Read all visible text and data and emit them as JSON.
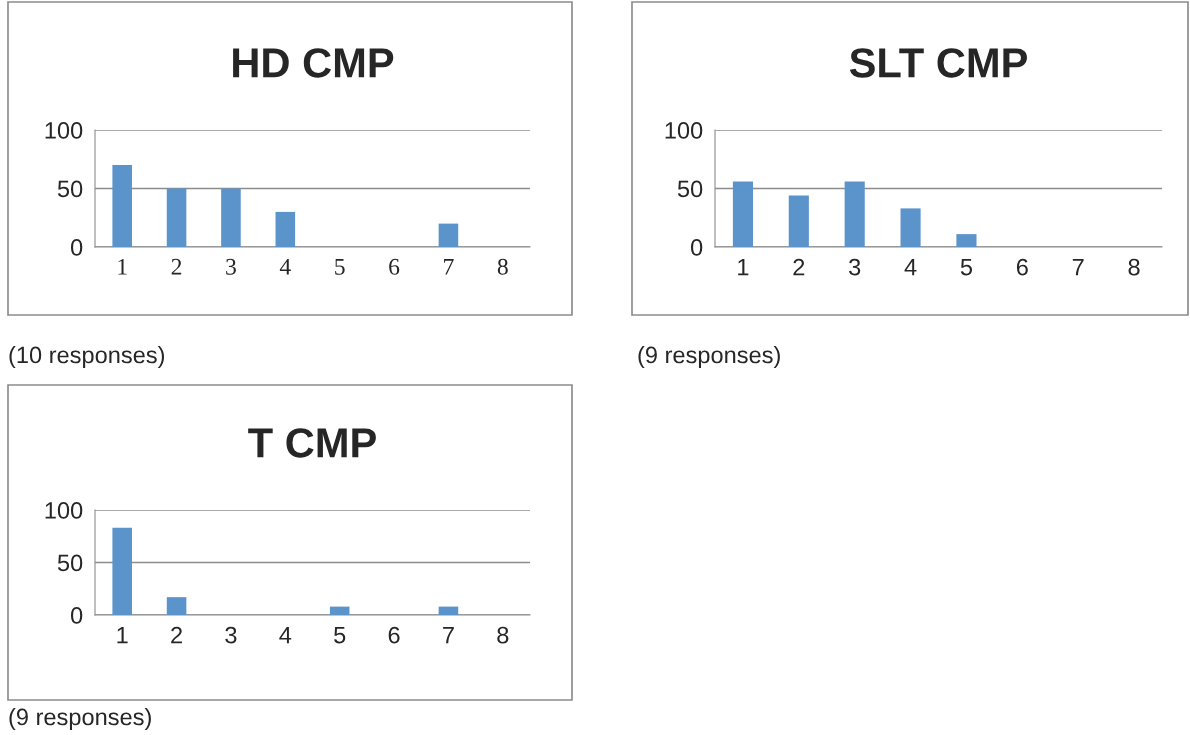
{
  "chart_data": [
    {
      "type": "bar",
      "title": "HD CMP",
      "categories": [
        "1",
        "2",
        "3",
        "4",
        "5",
        "6",
        "7",
        "8"
      ],
      "values": [
        70,
        50,
        50,
        30,
        0,
        0,
        20,
        0
      ],
      "color": "#5b93cb",
      "ylim": [
        0,
        100
      ],
      "yticks": [
        0,
        50,
        100
      ],
      "grid": "y",
      "annotations": [
        "(10 responses)"
      ]
    },
    {
      "type": "bar",
      "title": "SLT CMP",
      "categories": [
        "1",
        "2",
        "3",
        "4",
        "5",
        "6",
        "7",
        "8"
      ],
      "values": [
        56,
        44,
        56,
        33,
        11,
        0,
        0,
        0
      ],
      "color": "#5b93cb",
      "ylim": [
        0,
        100
      ],
      "yticks": [
        0,
        50,
        100
      ],
      "grid": "y",
      "annotations": [
        "(9 responses)"
      ]
    },
    {
      "type": "bar",
      "title": "T CMP",
      "categories": [
        "1",
        "2",
        "3",
        "4",
        "5",
        "6",
        "7",
        "8"
      ],
      "values": [
        83,
        17,
        0,
        0,
        8,
        0,
        8,
        0
      ],
      "color": "#5b93cb",
      "ylim": [
        0,
        100
      ],
      "yticks": [
        0,
        50,
        100
      ],
      "grid": "y",
      "annotations": [
        "(9 responses)"
      ]
    }
  ]
}
